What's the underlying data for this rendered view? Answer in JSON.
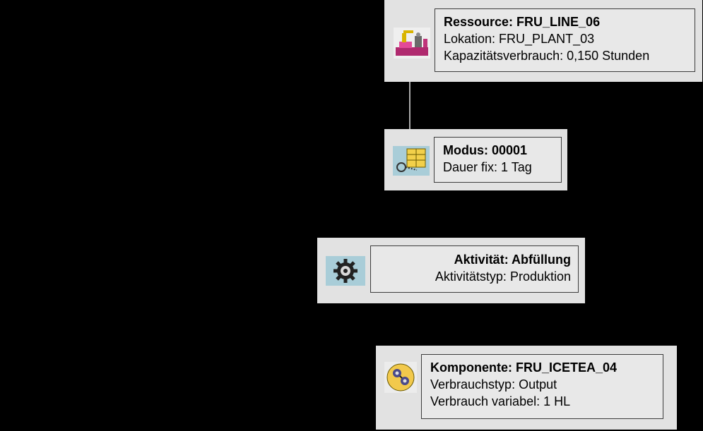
{
  "resource": {
    "title": "Ressource: FRU_LINE_06",
    "location": "Lokation: FRU_PLANT_03",
    "capacity": "Kapazitätsverbrauch: 0,150 Stunden"
  },
  "mode": {
    "title": "Modus: 00001",
    "duration": "Dauer fix: 1 Tag"
  },
  "activity": {
    "title": "Aktivität: Abfüllung",
    "type": "Aktivitätstyp: Produktion"
  },
  "component": {
    "title": "Komponente: FRU_ICETEA_04",
    "consumption_type": "Verbrauchstyp: Output",
    "consumption_variable": "Verbrauch variabel: 1 HL"
  },
  "icons": {
    "resource": "resource-machine-icon",
    "mode": "mode-schedule-icon",
    "activity": "activity-gear-icon",
    "component": "component-material-icon"
  },
  "colors": {
    "background": "#000000",
    "panel": "#e2e2e2",
    "activity_icon_bg": "#a9cdd8",
    "component_icon": "#f2c94c",
    "resource_icon_accent": "#c0347a"
  }
}
